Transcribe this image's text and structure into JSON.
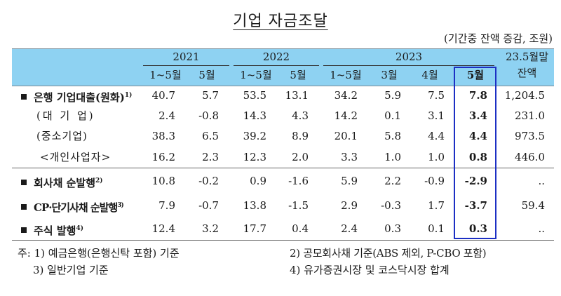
{
  "title": "기업 자금조달",
  "unit": "(기간중 잔액 증감, 조원)",
  "colors": {
    "header_bg": "#8ed2f2",
    "highlight_box": "#1c2fc4"
  },
  "header": {
    "years": [
      "2021",
      "2022",
      "2023"
    ],
    "subcolumns": [
      "1~5월",
      "5월",
      "1~5월",
      "5월",
      "1~5월",
      "3월",
      "4월",
      "5월"
    ],
    "balance_line1": "23.5월말",
    "balance_line2": "잔액"
  },
  "rows": [
    {
      "label": "은행 기업대출(원화)",
      "note": "1)",
      "bullet": true,
      "values": [
        "40.7",
        "5.7",
        "53.5",
        "13.1",
        "34.2",
        "5.9",
        "7.5",
        "7.8"
      ],
      "balance": "1,204.5"
    },
    {
      "label": "(대 기 업)",
      "note": "",
      "bullet": false,
      "values": [
        "2.4",
        "-0.8",
        "14.3",
        "4.3",
        "14.2",
        "0.1",
        "3.1",
        "3.4"
      ],
      "balance": "231.0"
    },
    {
      "label": "(중소기업)",
      "note": "",
      "bullet": false,
      "values": [
        "38.3",
        "6.5",
        "39.2",
        "8.9",
        "20.1",
        "5.8",
        "4.4",
        "4.4"
      ],
      "balance": "973.5"
    },
    {
      "label": "<개인사업자>",
      "note": "",
      "bullet": false,
      "values": [
        "16.2",
        "2.3",
        "12.3",
        "2.0",
        "3.3",
        "1.0",
        "1.0",
        "0.8"
      ],
      "balance": "446.0"
    },
    {
      "label": "회사채 순발행",
      "note": "2)",
      "bullet": true,
      "values": [
        "10.8",
        "-0.2",
        "0.9",
        "-1.6",
        "5.9",
        "2.2",
        "-0.9",
        "-2.9"
      ],
      "balance": ".."
    },
    {
      "label": "CP·단기사채 순발행",
      "note": "3)",
      "bullet": true,
      "values": [
        "7.9",
        "-0.7",
        "13.8",
        "-1.5",
        "2.9",
        "-0.3",
        "1.7",
        "-3.7"
      ],
      "balance": "59.4"
    },
    {
      "label": "주식 발행",
      "note": "4)",
      "bullet": true,
      "values": [
        "12.4",
        "3.2",
        "17.7",
        "0.4",
        "2.4",
        "0.3",
        "0.1",
        "0.3"
      ],
      "balance": ".."
    }
  ],
  "footnotes": {
    "prefix": "주:",
    "n1": "1) 예금은행(은행신탁 포함) 기준",
    "n2": "2) 공모회사채 기준(ABS 제외, P-CBO 포함)",
    "n3": "3) 일반기업 기준",
    "n4": "4) 유가증권시장 및 코스닥시장 합계"
  }
}
